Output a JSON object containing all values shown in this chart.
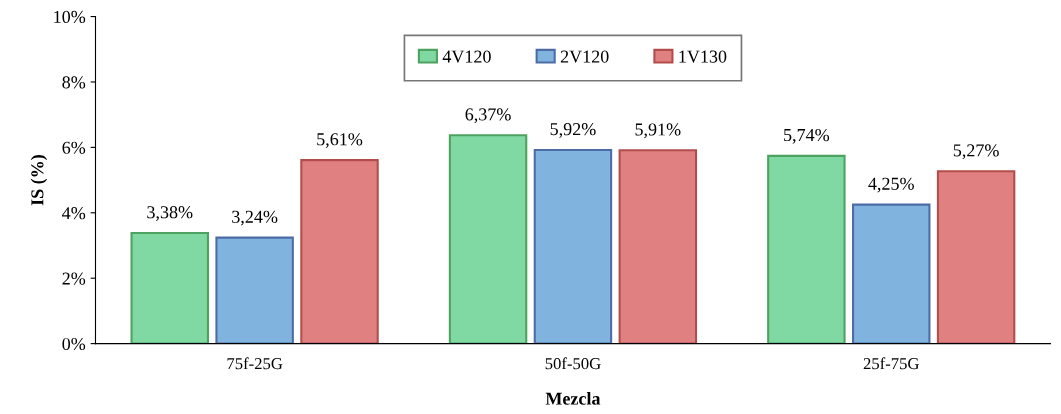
{
  "chart_data": {
    "type": "bar",
    "categories": [
      "75f-25G",
      "50f-50G",
      "25f-75G"
    ],
    "xlabel": "Mezcla",
    "ylabel": "IS (%)",
    "series": [
      {
        "name": "4V120",
        "color": "#80d8a2",
        "values": [
          3.38,
          6.37,
          5.74
        ],
        "value_labels": [
          "3,38%",
          "6,37%",
          "5,74%"
        ]
      },
      {
        "name": "2V120",
        "color": "#80b4de",
        "values": [
          3.24,
          5.92,
          4.25
        ],
        "value_labels": [
          "3,24%",
          "5,92%",
          "4,25%"
        ]
      },
      {
        "name": "1V130",
        "color": "#e08080",
        "values": [
          5.61,
          5.91,
          5.27
        ],
        "value_labels": [
          "5,61%",
          "5,91%",
          "5,27%"
        ]
      }
    ],
    "ylim": [
      0,
      10
    ],
    "yticks": [
      {
        "value": 0,
        "label": "0%"
      },
      {
        "value": 2,
        "label": "2%"
      },
      {
        "value": 4,
        "label": "4%"
      },
      {
        "value": 6,
        "label": "6%"
      },
      {
        "value": 8,
        "label": "8%"
      },
      {
        "value": 10,
        "label": "10%"
      }
    ],
    "grid": false,
    "legend": "top"
  }
}
